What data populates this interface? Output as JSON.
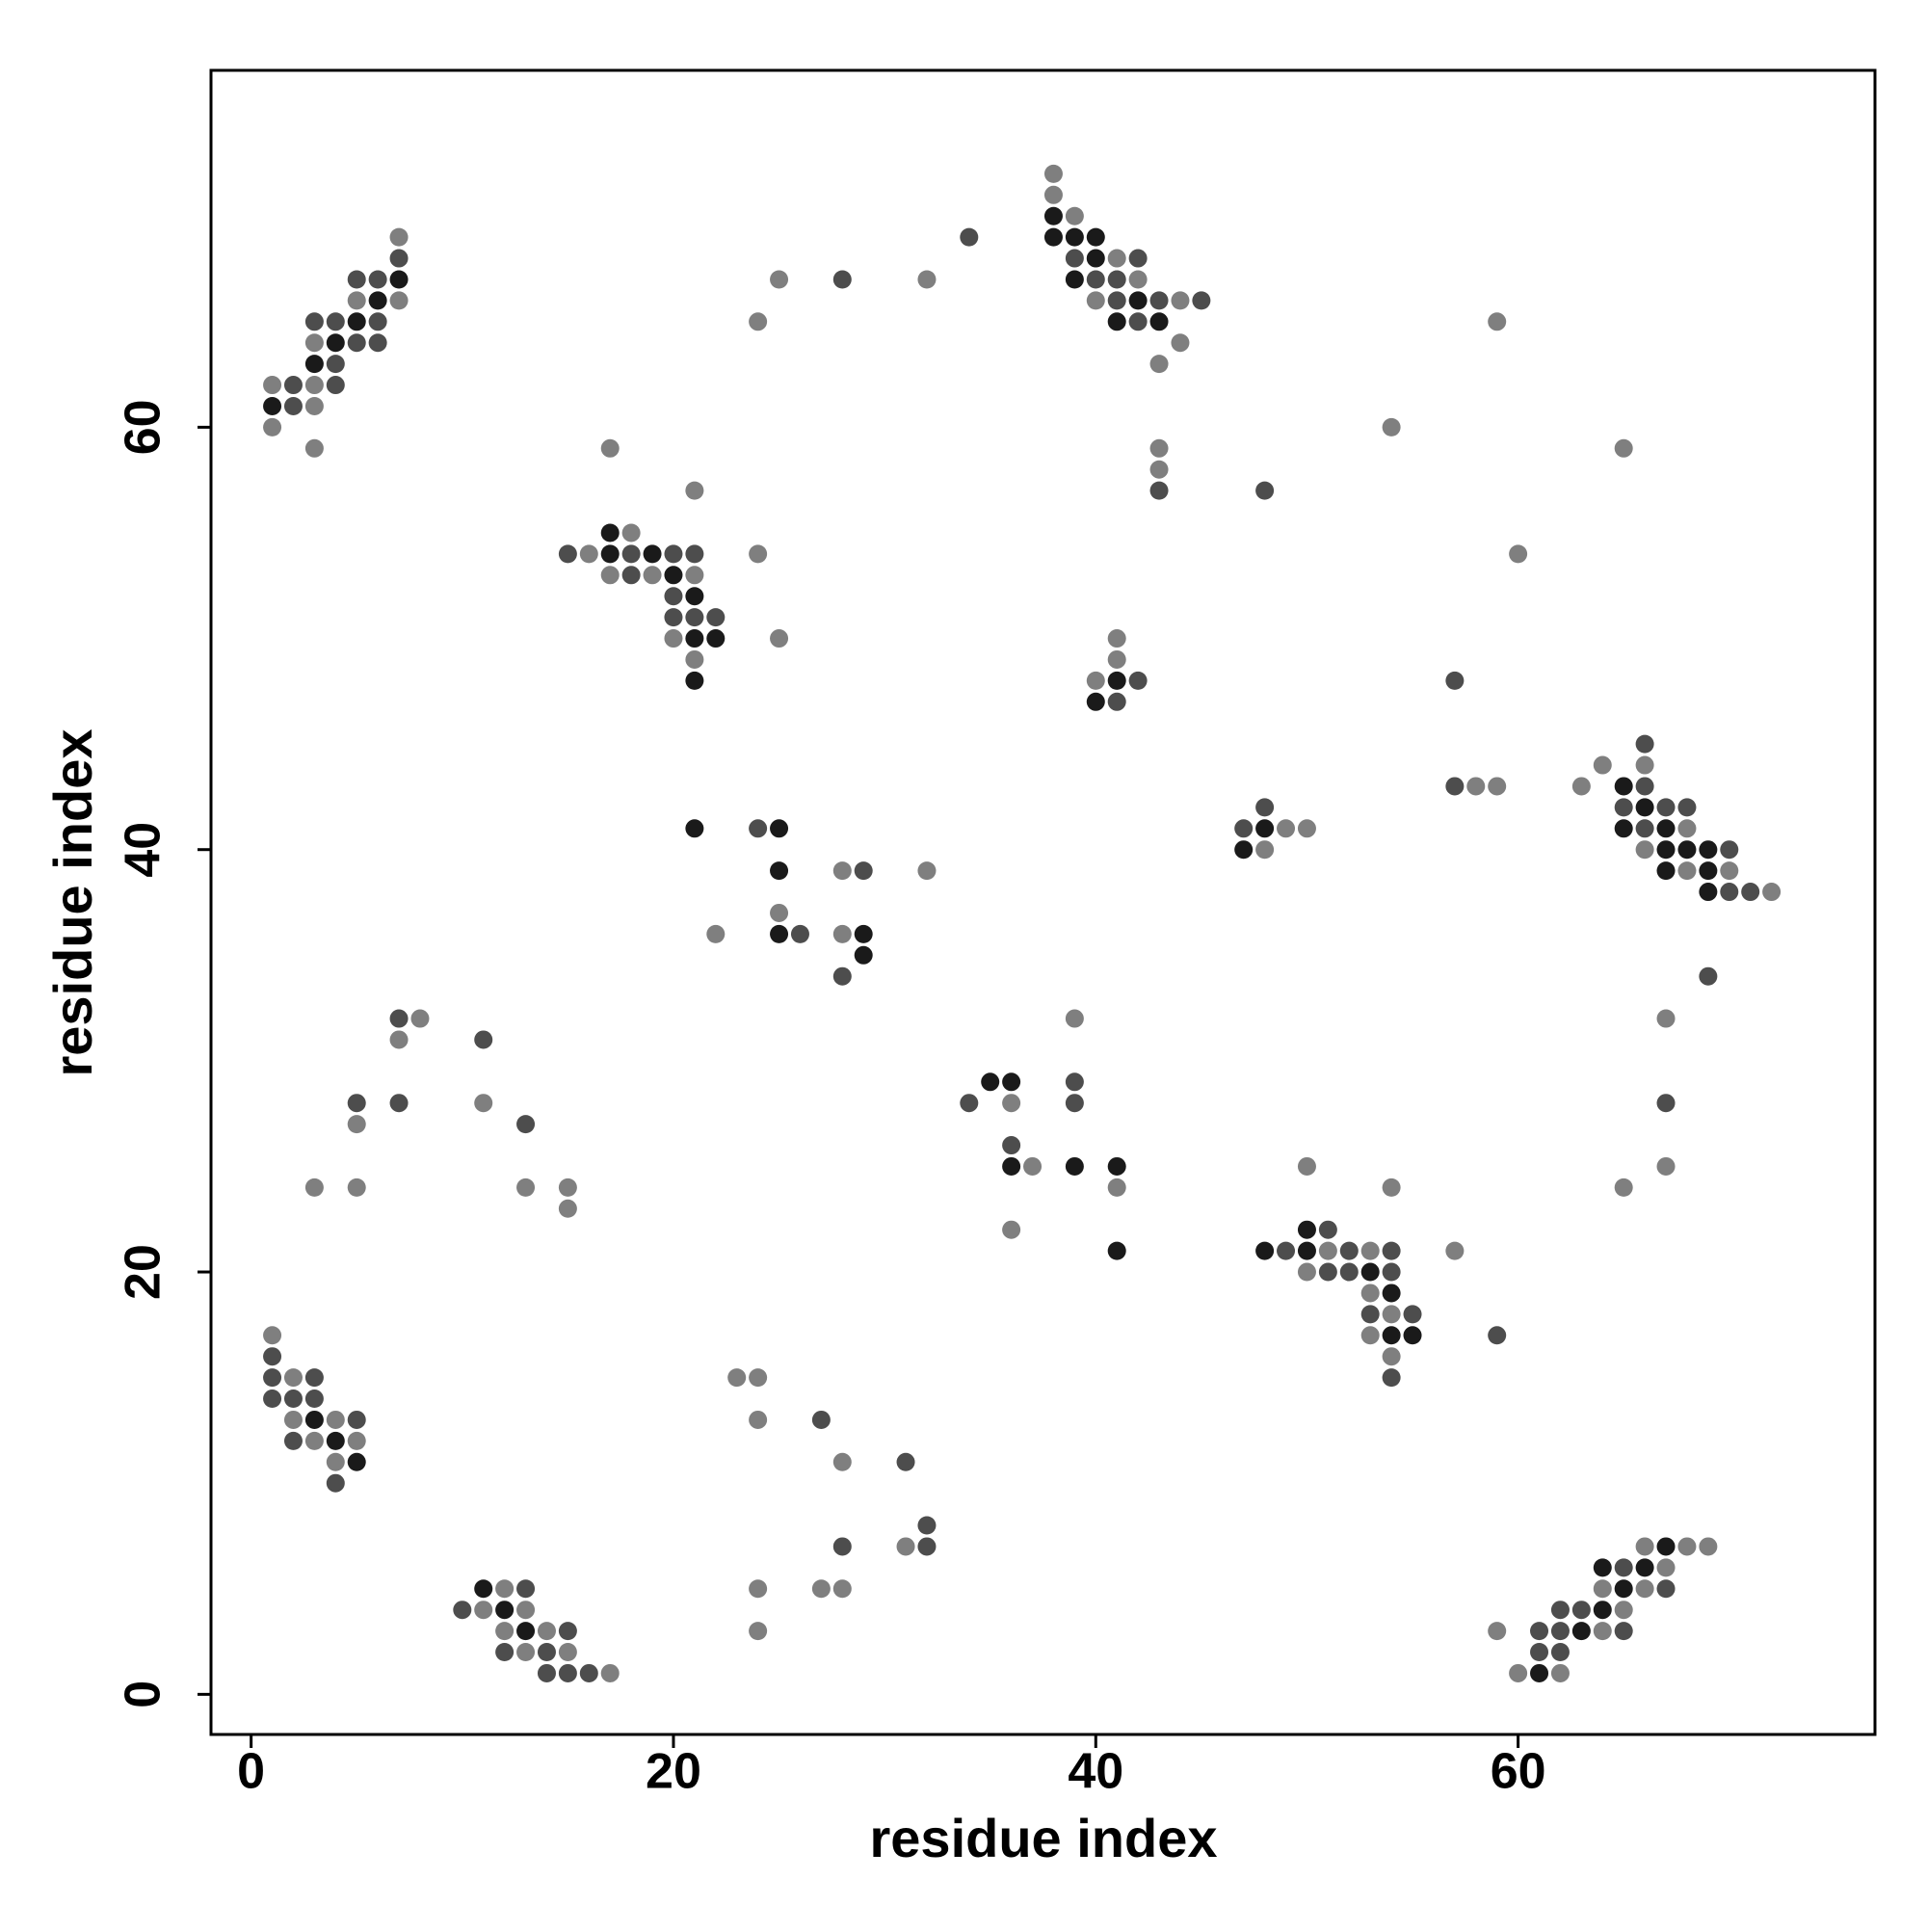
{
  "chart_data": {
    "type": "scatter",
    "x_label": "residue index",
    "y_label": "residue index",
    "xlim": [
      -1.9,
      76.9
    ],
    "ylim": [
      -1.9,
      76.9
    ],
    "xticks": [
      0,
      20,
      40,
      60
    ],
    "yticks": [
      0,
      20,
      40,
      60
    ],
    "series": [
      {
        "color": "#1a1a1a",
        "x": [
          1,
          3,
          4,
          5,
          6,
          7,
          3,
          4,
          5,
          11,
          12,
          13,
          17,
          17,
          19,
          20,
          21,
          21,
          21,
          22,
          21,
          25,
          25,
          25,
          29,
          29,
          38,
          38,
          39,
          39,
          40,
          40,
          41,
          42,
          43,
          40,
          41,
          35,
          36,
          36,
          39,
          41,
          41,
          47,
          48,
          48,
          50,
          50,
          53,
          54,
          54,
          55,
          65,
          65,
          66,
          67,
          67,
          67,
          68,
          69,
          69,
          69,
          61,
          63,
          64,
          64,
          65,
          66,
          67
        ],
        "y": [
          61,
          63,
          64,
          65,
          66,
          67,
          13,
          12,
          11,
          5,
          4,
          3,
          54,
          55,
          54,
          53,
          48,
          50,
          52,
          50,
          41,
          41,
          39,
          36,
          36,
          35,
          70,
          69,
          69,
          67,
          69,
          68,
          65,
          66,
          65,
          47,
          48,
          29,
          29,
          25,
          25,
          25,
          21,
          40,
          41,
          21,
          22,
          21,
          20,
          19,
          17,
          17,
          41,
          43,
          42,
          41,
          40,
          39,
          40,
          40,
          39,
          38,
          1,
          3,
          4,
          6,
          5,
          6,
          7
        ]
      },
      {
        "color": "#4d4d4d",
        "x": [
          2,
          2,
          3,
          4,
          4,
          4,
          5,
          5,
          6,
          6,
          6,
          7,
          1,
          1,
          1,
          2,
          2,
          3,
          3,
          4,
          5,
          10,
          12,
          13,
          14,
          14,
          15,
          15,
          16,
          5,
          7,
          7,
          11,
          13,
          15,
          18,
          18,
          20,
          20,
          20,
          21,
          21,
          22,
          28,
          34,
          24,
          26,
          28,
          29,
          27,
          28,
          31,
          32,
          32,
          39,
          40,
          41,
          41,
          42,
          42,
          43,
          45,
          43,
          41,
          42,
          34,
          36,
          39,
          39,
          47,
          48,
          48,
          49,
          51,
          51,
          52,
          52,
          53,
          54,
          54,
          54,
          55,
          59,
          57,
          57,
          65,
          66,
          66,
          66,
          67,
          68,
          70,
          70,
          71,
          69,
          67,
          61,
          61,
          62,
          62,
          62,
          63,
          65,
          65,
          67
        ],
        "y": [
          61,
          62,
          65,
          62,
          63,
          65,
          64,
          67,
          64,
          65,
          67,
          68,
          14,
          15,
          16,
          12,
          14,
          14,
          15,
          10,
          13,
          4,
          2,
          5,
          1,
          2,
          1,
          3,
          1,
          28,
          28,
          32,
          31,
          27,
          54,
          53,
          54,
          51,
          52,
          54,
          51,
          54,
          51,
          67,
          69,
          41,
          36,
          34,
          39,
          13,
          7,
          11,
          7,
          8,
          68,
          67,
          67,
          66,
          68,
          65,
          66,
          66,
          57,
          47,
          48,
          28,
          26,
          29,
          28,
          41,
          42,
          57,
          21,
          22,
          20,
          21,
          20,
          18,
          21,
          20,
          15,
          18,
          17,
          48,
          43,
          42,
          45,
          43,
          41,
          42,
          42,
          40,
          38,
          38,
          34,
          28,
          2,
          3,
          2,
          3,
          4,
          4,
          3,
          6,
          5
        ]
      },
      {
        "color": "#7f7f7f",
        "x": [
          1,
          1,
          3,
          3,
          3,
          3,
          5,
          7,
          7,
          1,
          2,
          2,
          3,
          4,
          4,
          5,
          11,
          12,
          12,
          13,
          13,
          14,
          15,
          17,
          3,
          5,
          5,
          7,
          8,
          11,
          13,
          15,
          15,
          16,
          17,
          17,
          18,
          19,
          20,
          21,
          21,
          21,
          24,
          25,
          24,
          25,
          32,
          22,
          25,
          28,
          28,
          32,
          23,
          24,
          24,
          24,
          24,
          27,
          28,
          28,
          31,
          38,
          38,
          39,
          40,
          41,
          42,
          43,
          44,
          44,
          43,
          43,
          40,
          41,
          41,
          36,
          37,
          36,
          39,
          41,
          48,
          49,
          50,
          50,
          50,
          51,
          53,
          53,
          53,
          54,
          54,
          54,
          57,
          54,
          59,
          60,
          65,
          58,
          59,
          63,
          64,
          66,
          66,
          68,
          68,
          70,
          72,
          67,
          67,
          65,
          59,
          60,
          62,
          64,
          64,
          65,
          66,
          66,
          67,
          68,
          69
        ],
        "y": [
          60,
          62,
          59,
          61,
          62,
          64,
          66,
          66,
          69,
          17,
          13,
          15,
          12,
          11,
          13,
          12,
          4,
          3,
          5,
          2,
          4,
          3,
          2,
          1,
          24,
          24,
          27,
          31,
          32,
          28,
          24,
          23,
          24,
          54,
          53,
          59,
          55,
          53,
          50,
          49,
          53,
          57,
          54,
          50,
          65,
          67,
          67,
          36,
          37,
          36,
          39,
          39,
          15,
          15,
          13,
          5,
          3,
          5,
          5,
          11,
          7,
          72,
          71,
          70,
          66,
          68,
          67,
          63,
          66,
          64,
          59,
          58,
          48,
          50,
          49,
          28,
          25,
          22,
          32,
          24,
          40,
          41,
          41,
          20,
          25,
          21,
          21,
          19,
          17,
          18,
          16,
          24,
          21,
          60,
          65,
          54,
          59,
          43,
          43,
          43,
          44,
          44,
          40,
          41,
          39,
          39,
          38,
          32,
          25,
          24,
          3,
          1,
          1,
          3,
          5,
          4,
          5,
          7,
          6,
          7,
          7
        ]
      }
    ]
  }
}
